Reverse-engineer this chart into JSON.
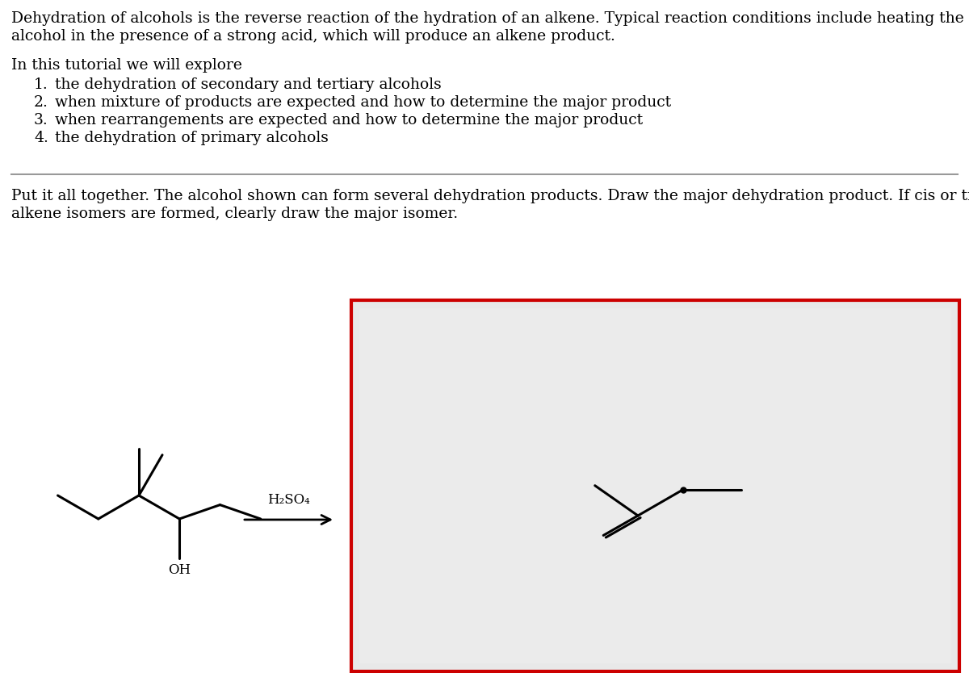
{
  "bg_color": "#ffffff",
  "text_color": "#000000",
  "line1": "Dehydration of alcohols is the reverse reaction of the hydration of an alkene. Typical reaction conditions include heating the",
  "line2": "alcohol in the presence of a strong acid, which will produce an alkene product.",
  "intro_text": "In this tutorial we will explore",
  "list_items": [
    "the dehydration of secondary and tertiary alcohols",
    "when mixture of products are expected and how to determine the major product",
    "when rearrangements are expected and how to determine the major product",
    "the dehydration of primary alcohols"
  ],
  "question_line1": "Put it all together. The alcohol shown can form several dehydration products. Draw the major dehydration product. If cis or trans",
  "question_line2": "alkene isomers are formed, clearly draw the major isomer.",
  "separator_color": "#999999",
  "box_border_color": "#cc0000",
  "box_bg_color": "#e8e8e8",
  "reagent_label": "H₂SO₄",
  "font_size_main": 13.5,
  "font_size_list": 13.5
}
